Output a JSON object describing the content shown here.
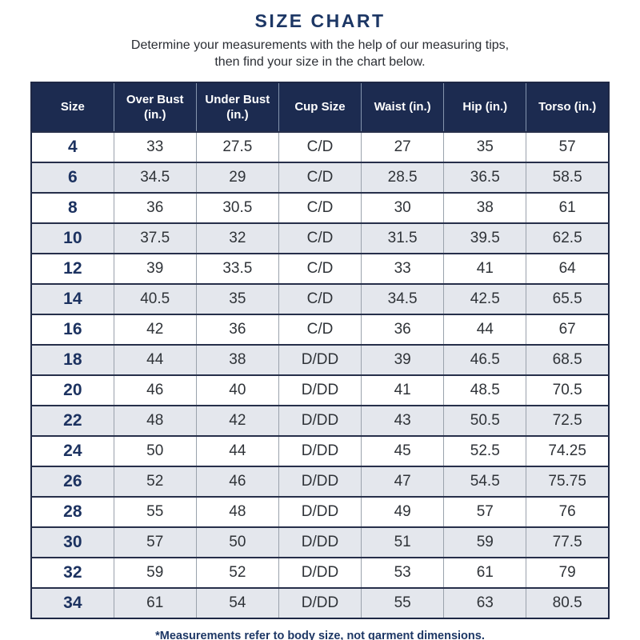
{
  "header": {
    "title": "SIZE CHART",
    "subtitle_line1": "Determine your measurements with the help of our measuring tips,",
    "subtitle_line2": "then find your size in the chart below."
  },
  "footer": {
    "note": "*Measurements refer to body size, not garment dimensions."
  },
  "colors": {
    "title_navy": "#1d3765",
    "header_bg": "#1c2b50",
    "header_text": "#ffffff",
    "row_stripe": "#e4e7ed",
    "size_text_navy": "#1c3260",
    "body_text": "#2f3338",
    "row_border": "#262f4a",
    "column_divider": "#9aa2ac"
  },
  "chart_data": {
    "type": "table",
    "title": "SIZE CHART",
    "columns": [
      "Size",
      "Over Bust (in.)",
      "Under Bust (in.)",
      "Cup Size",
      "Waist (in.)",
      "Hip (in.)",
      "Torso (in.)"
    ],
    "rows": [
      [
        "4",
        "33",
        "27.5",
        "C/D",
        "27",
        "35",
        "57"
      ],
      [
        "6",
        "34.5",
        "29",
        "C/D",
        "28.5",
        "36.5",
        "58.5"
      ],
      [
        "8",
        "36",
        "30.5",
        "C/D",
        "30",
        "38",
        "61"
      ],
      [
        "10",
        "37.5",
        "32",
        "C/D",
        "31.5",
        "39.5",
        "62.5"
      ],
      [
        "12",
        "39",
        "33.5",
        "C/D",
        "33",
        "41",
        "64"
      ],
      [
        "14",
        "40.5",
        "35",
        "C/D",
        "34.5",
        "42.5",
        "65.5"
      ],
      [
        "16",
        "42",
        "36",
        "C/D",
        "36",
        "44",
        "67"
      ],
      [
        "18",
        "44",
        "38",
        "D/DD",
        "39",
        "46.5",
        "68.5"
      ],
      [
        "20",
        "46",
        "40",
        "D/DD",
        "41",
        "48.5",
        "70.5"
      ],
      [
        "22",
        "48",
        "42",
        "D/DD",
        "43",
        "50.5",
        "72.5"
      ],
      [
        "24",
        "50",
        "44",
        "D/DD",
        "45",
        "52.5",
        "74.25"
      ],
      [
        "26",
        "52",
        "46",
        "D/DD",
        "47",
        "54.5",
        "75.75"
      ],
      [
        "28",
        "55",
        "48",
        "D/DD",
        "49",
        "57",
        "76"
      ],
      [
        "30",
        "57",
        "50",
        "D/DD",
        "51",
        "59",
        "77.5"
      ],
      [
        "32",
        "59",
        "52",
        "D/DD",
        "53",
        "61",
        "79"
      ],
      [
        "34",
        "61",
        "54",
        "D/DD",
        "55",
        "63",
        "80.5"
      ]
    ],
    "layout": {
      "stripe_pattern": "alternating white / light gray starting white",
      "size_column_style": "bold navy",
      "header_style": "navy background, white bold text"
    }
  }
}
